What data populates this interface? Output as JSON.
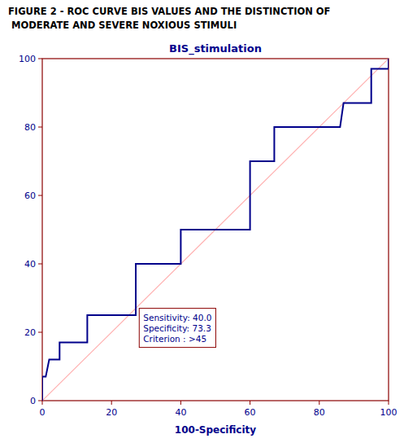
{
  "chart_data": {
    "type": "line",
    "title": "BIS_stimulation",
    "subtitle": [
      "FIGURE 2 - ROC CURVE BIS VALUES AND THE DISTINCTION OF",
      " MODERATE AND SEVERE NOXIOUS STIMULI"
    ],
    "x_label": "100-Specificity",
    "xlim": [
      0,
      100
    ],
    "ylim": [
      0,
      100
    ],
    "xticks": [
      0,
      20,
      40,
      60,
      80,
      100
    ],
    "yticks": [
      0,
      20,
      40,
      60,
      80,
      100
    ],
    "grid": false,
    "series": [
      {
        "x": [
          0,
          100
        ],
        "values": [
          0,
          100
        ],
        "color": "#FFB0B0"
      },
      {
        "x": [
          0,
          0,
          1,
          2,
          3,
          4,
          5,
          5,
          6,
          7,
          8,
          9,
          10,
          11,
          13,
          13,
          14,
          15,
          17,
          26,
          27,
          27,
          40,
          40,
          41,
          43,
          50,
          57,
          60,
          60,
          63,
          67,
          67,
          73,
          80,
          86,
          87,
          93,
          95,
          95,
          100,
          100
        ],
        "values": [
          0,
          7,
          7,
          12,
          12,
          12,
          12,
          17,
          17,
          17,
          17,
          17,
          17,
          17,
          17,
          25,
          25,
          25,
          25,
          25,
          25,
          40,
          40,
          50,
          50,
          50,
          50,
          50,
          50,
          70,
          70,
          70,
          80,
          80,
          80,
          80,
          87,
          87,
          87,
          97,
          97,
          100
        ],
        "color": "#00008B"
      }
    ],
    "annotations": [
      {
        "text": "Sensitivity: 40.0\nSpecificity: 73.3\nCriterion : >45",
        "x": 28,
        "y": 27
      }
    ]
  }
}
